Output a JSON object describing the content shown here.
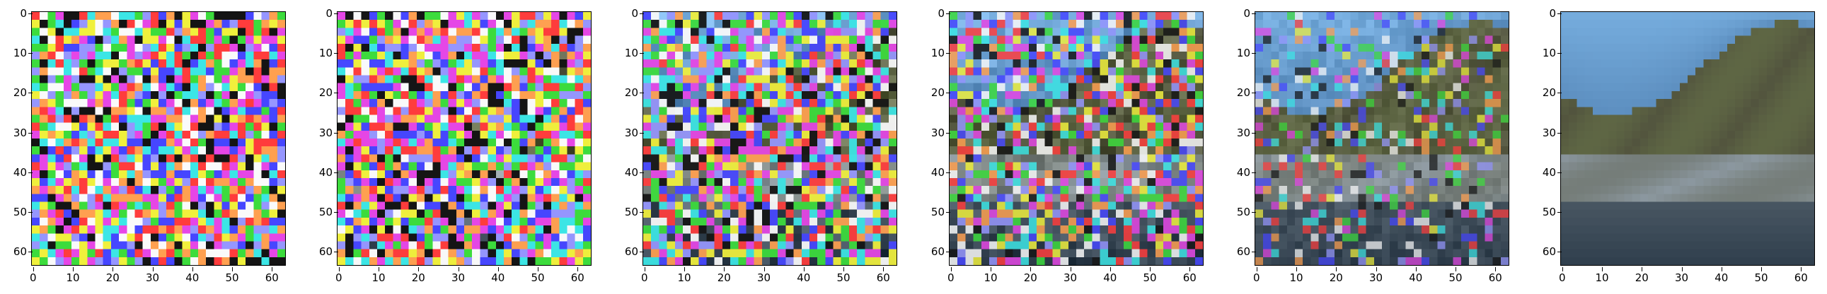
{
  "axes": {
    "x_ticks": [
      "0",
      "10",
      "20",
      "30",
      "40",
      "50",
      "60"
    ],
    "y_ticks": [
      "0",
      "10",
      "20",
      "30",
      "40",
      "50",
      "60"
    ]
  },
  "panels": [
    {
      "id": "step-1",
      "noise_level": 1.0
    },
    {
      "id": "step-2",
      "noise_level": 0.98
    },
    {
      "id": "step-3",
      "noise_level": 0.85
    },
    {
      "id": "step-4",
      "noise_level": 0.65
    },
    {
      "id": "step-5",
      "noise_level": 0.35
    },
    {
      "id": "step-6",
      "noise_level": 0.0
    }
  ],
  "colors": {
    "sky": "#5d8fc0",
    "mountain": "#52543e",
    "mist": "#8c98a0",
    "water": "#2b3a48"
  }
}
